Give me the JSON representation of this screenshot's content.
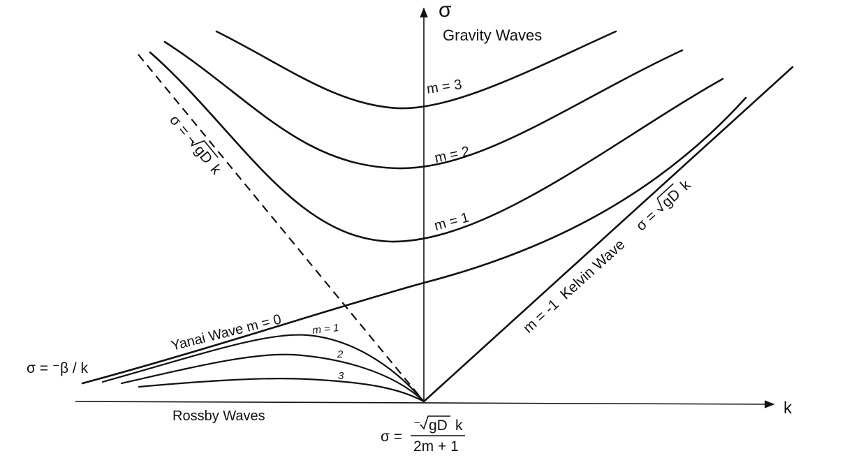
{
  "diagram": {
    "axes": {
      "y_label": "σ",
      "x_label": "k"
    },
    "labels": {
      "gravity_waves": "Gravity Waves",
      "rossby_waves": "Rossby Waves",
      "yanai_wave": "Yanai Wave  m = 0",
      "kelvin_wave": "m = -1  Kelvin Wave",
      "left_asymptote": "σ = ⁻β / k",
      "gravity_m3": "m = 3",
      "gravity_m2": "m = 2",
      "gravity_m1": "m = 1",
      "rossby_m1": "m = 1",
      "rossby_m2": "2",
      "rossby_m3": "3"
    },
    "formulas": {
      "neg_line_prefix": "σ = −",
      "neg_line_radicand": "gD",
      "neg_line_suffix": "k",
      "kelvin_prefix": "σ =",
      "kelvin_radicand": "gD",
      "kelvin_suffix": "k",
      "rossby_prefix": "σ =",
      "rossby_num_minus": "⁻",
      "rossby_num_radicand": "gD",
      "rossby_num_suffix": "k",
      "rossby_den": "2m + 1"
    }
  }
}
